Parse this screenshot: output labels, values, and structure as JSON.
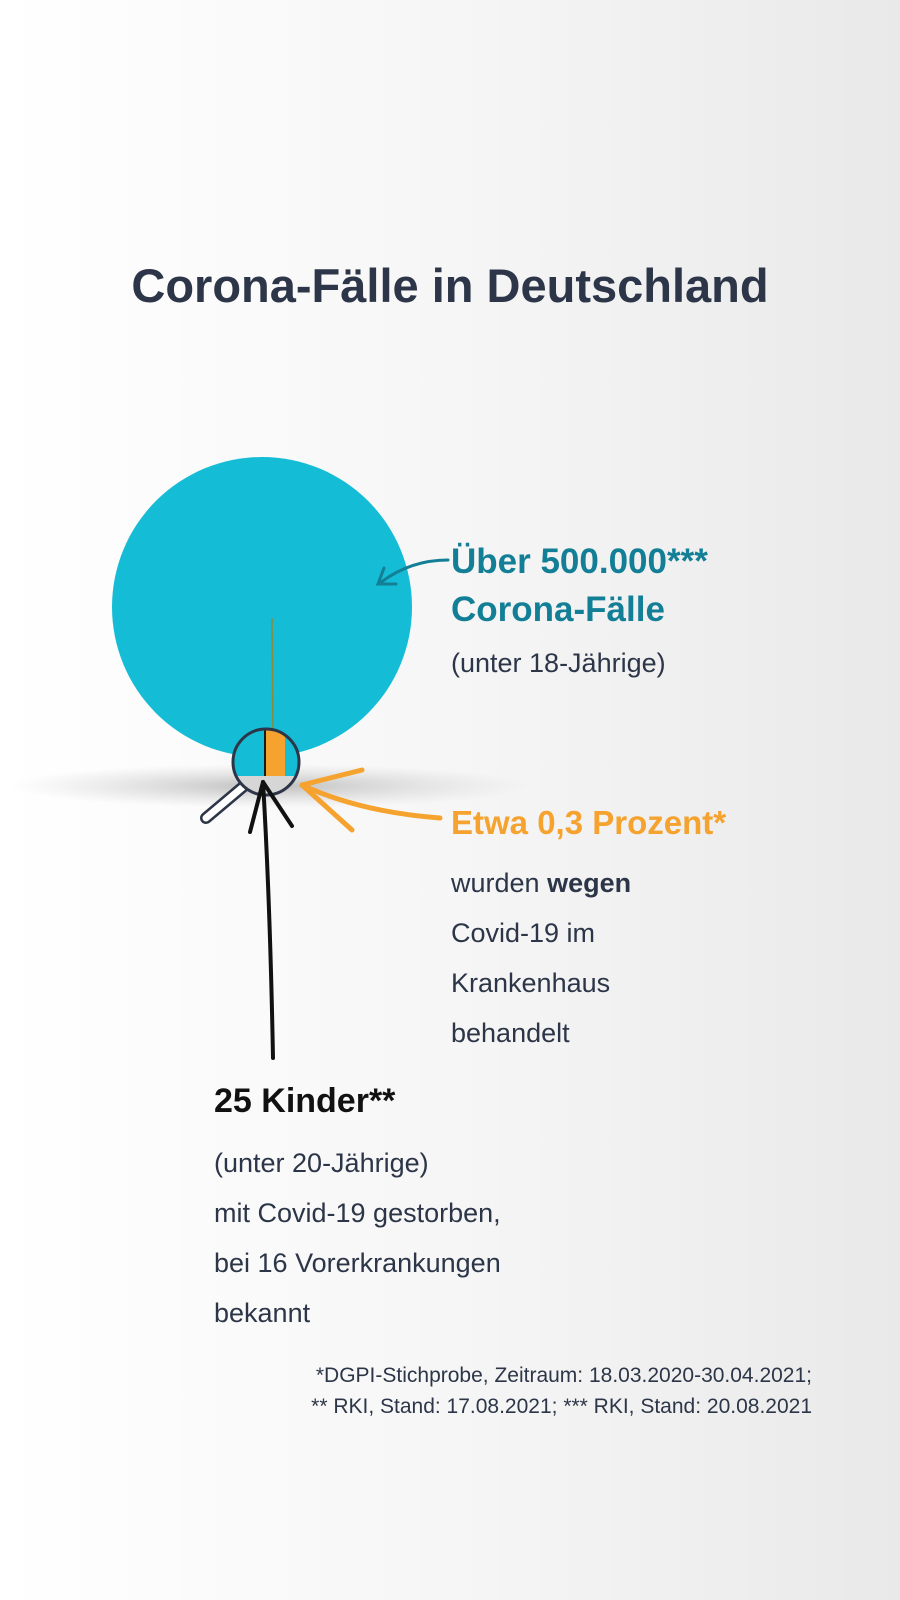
{
  "title": "Corona-Fälle in Deutschland",
  "colors": {
    "cases": "#14bcd6",
    "hospital": "#f5a22f",
    "deaths": "#1a1a1a",
    "teal_text": "#137f96"
  },
  "cases": {
    "headline_1": "Über 500.000***",
    "headline_2": "Corona-Fälle",
    "sub": "(unter 18-Jährige)"
  },
  "hospital": {
    "headline": "Etwa 0,3 Prozent*",
    "share_percent": 0.3,
    "line_1_pre": "wurden ",
    "line_1_bold": "wegen",
    "line_2": "Covid-19 im",
    "line_3": "Krankenhaus",
    "line_4": "behandelt"
  },
  "deaths": {
    "headline": "25 Kinder**",
    "line_1": "(unter 20-Jährige)",
    "line_2": "mit Covid-19 gestorben,",
    "line_3": "bei 16 Vorerkrankungen",
    "line_4": "bekannt"
  },
  "footnote": {
    "line_1": "*DGPI-Stichprobe, Zeitraum: 18.03.2020-30.04.2021;",
    "line_2": "** RKI, Stand: 17.08.2021; *** RKI, Stand: 20.08.2021"
  },
  "icons": [
    "magnifier-icon",
    "arrow-icon"
  ]
}
